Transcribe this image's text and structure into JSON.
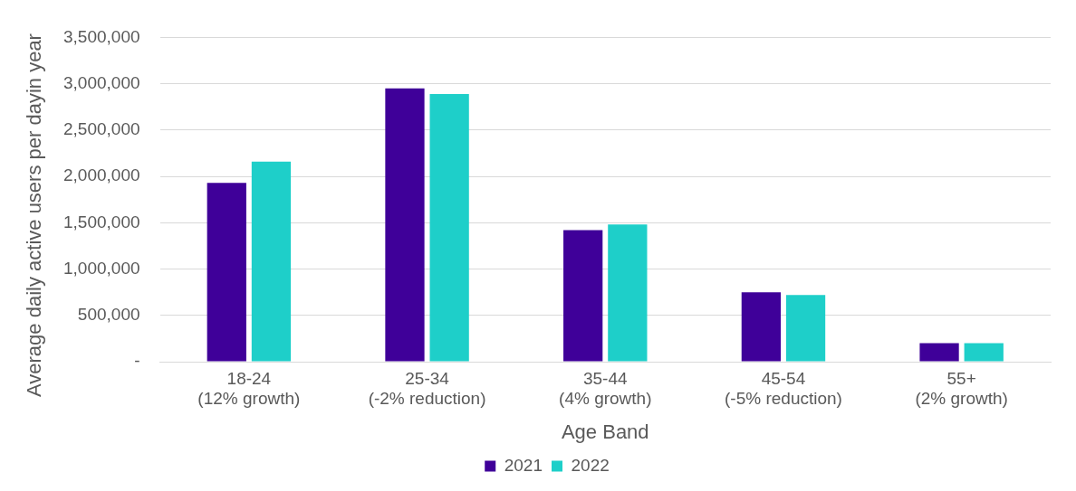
{
  "chart_data": {
    "type": "bar",
    "xlabel": "Age Band",
    "ylabel": "Average daily active users  per dayin year",
    "categories": [
      "18-24\n(12% growth)",
      "25-34\n(-2% reduction)",
      "35-44\n(4% growth)",
      "45-54\n(-5% reduction)",
      "55+\n(2% growth)"
    ],
    "series": [
      {
        "name": "2021",
        "color": "#3f0099",
        "values": [
          1930000,
          2950000,
          1420000,
          750000,
          200000
        ]
      },
      {
        "name": "2022",
        "color": "#1ecfc9",
        "values": [
          2160000,
          2890000,
          1480000,
          720000,
          200000
        ]
      }
    ],
    "ylim": [
      0,
      3500000
    ],
    "yticks": [
      {
        "value": 0,
        "label": "-"
      },
      {
        "value": 500000,
        "label": "500,000"
      },
      {
        "value": 1000000,
        "label": "1,000,000"
      },
      {
        "value": 1500000,
        "label": "1,500,000"
      },
      {
        "value": 2000000,
        "label": "2,000,000"
      },
      {
        "value": 2500000,
        "label": "2,500,000"
      },
      {
        "value": 3000000,
        "label": "3,000,000"
      },
      {
        "value": 3500000,
        "label": "3,500,000"
      }
    ],
    "grid": "y",
    "legend": "bottom"
  }
}
